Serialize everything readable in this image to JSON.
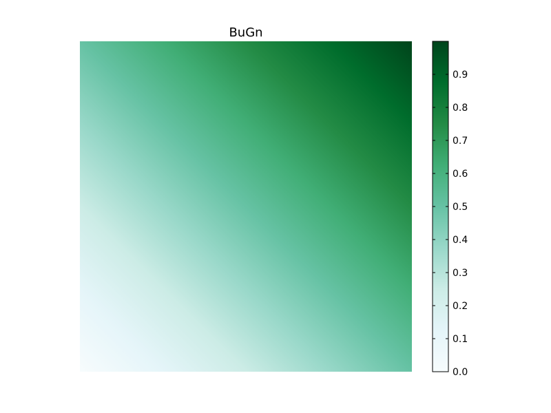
{
  "chart_data": {
    "type": "heatmap",
    "title": "BuGn",
    "colormap": "BuGn",
    "xlabel": "",
    "ylabel": "",
    "axes_visible": false,
    "value_function": "value increases linearly from bottom-left corner (0.0) to top-right corner (~1.0), diagonal gradient",
    "corner_values": {
      "bottom_left": 0.0,
      "bottom_right": 0.5,
      "top_left": 0.5,
      "top_right": 1.0
    },
    "colorbar": {
      "vmin": 0.0,
      "vmax": 1.0,
      "ticks": [
        0.0,
        0.1,
        0.2,
        0.3,
        0.4,
        0.5,
        0.6,
        0.7,
        0.8,
        0.9
      ],
      "tick_labels": [
        "0.0",
        "0.1",
        "0.2",
        "0.3",
        "0.4",
        "0.5",
        "0.6",
        "0.7",
        "0.8",
        "0.9"
      ]
    },
    "colormap_stops": [
      {
        "value": 0.0,
        "color": "#f7fcfd"
      },
      {
        "value": 0.125,
        "color": "#e5f5f9"
      },
      {
        "value": 0.25,
        "color": "#ccece6"
      },
      {
        "value": 0.375,
        "color": "#99d8c9"
      },
      {
        "value": 0.5,
        "color": "#66c2a4"
      },
      {
        "value": 0.625,
        "color": "#41ae76"
      },
      {
        "value": 0.75,
        "color": "#238b45"
      },
      {
        "value": 0.875,
        "color": "#006d2c"
      },
      {
        "value": 1.0,
        "color": "#00441b"
      }
    ]
  }
}
